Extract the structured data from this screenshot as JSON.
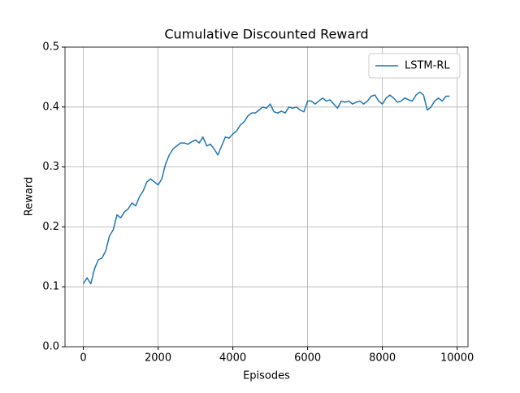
{
  "chart_data": {
    "type": "line",
    "title": "Cumulative Discounted Reward",
    "xlabel": "Episodes",
    "ylabel": "Reward",
    "x": [
      0,
      100,
      200,
      300,
      400,
      500,
      600,
      700,
      800,
      900,
      1000,
      1100,
      1200,
      1300,
      1400,
      1500,
      1600,
      1700,
      1800,
      1900,
      2000,
      2100,
      2200,
      2300,
      2400,
      2500,
      2600,
      2700,
      2800,
      2900,
      3000,
      3100,
      3200,
      3300,
      3400,
      3500,
      3600,
      3700,
      3800,
      3900,
      4000,
      4100,
      4200,
      4300,
      4400,
      4500,
      4600,
      4700,
      4800,
      4900,
      5000,
      5100,
      5200,
      5300,
      5400,
      5500,
      5600,
      5700,
      5800,
      5900,
      6000,
      6100,
      6200,
      6300,
      6400,
      6500,
      6600,
      6700,
      6800,
      6900,
      7000,
      7100,
      7200,
      7300,
      7400,
      7500,
      7600,
      7700,
      7800,
      7900,
      8000,
      8100,
      8200,
      8300,
      8400,
      8500,
      8600,
      8700,
      8800,
      8900,
      9000,
      9100,
      9200,
      9300,
      9400,
      9500,
      9600,
      9700,
      9800
    ],
    "series": [
      {
        "name": "LSTM-RL",
        "color": "#1f77b4",
        "values": [
          0.105,
          0.115,
          0.105,
          0.13,
          0.145,
          0.148,
          0.16,
          0.185,
          0.195,
          0.22,
          0.215,
          0.225,
          0.23,
          0.24,
          0.235,
          0.25,
          0.26,
          0.275,
          0.28,
          0.275,
          0.27,
          0.28,
          0.305,
          0.32,
          0.33,
          0.335,
          0.34,
          0.34,
          0.338,
          0.342,
          0.345,
          0.34,
          0.35,
          0.335,
          0.338,
          0.33,
          0.32,
          0.335,
          0.35,
          0.348,
          0.355,
          0.36,
          0.37,
          0.375,
          0.385,
          0.39,
          0.39,
          0.395,
          0.4,
          0.398,
          0.405,
          0.392,
          0.39,
          0.393,
          0.39,
          0.4,
          0.398,
          0.4,
          0.395,
          0.392,
          0.41,
          0.41,
          0.405,
          0.41,
          0.415,
          0.41,
          0.412,
          0.405,
          0.398,
          0.41,
          0.408,
          0.41,
          0.405,
          0.408,
          0.41,
          0.405,
          0.41,
          0.418,
          0.42,
          0.41,
          0.405,
          0.415,
          0.42,
          0.415,
          0.408,
          0.41,
          0.415,
          0.412,
          0.41,
          0.42,
          0.425,
          0.42,
          0.395,
          0.4,
          0.41,
          0.415,
          0.41,
          0.418,
          0.418
        ]
      }
    ],
    "xlim": [
      -490,
      10290
    ],
    "xticks": [
      0,
      2000,
      4000,
      6000,
      8000,
      10000
    ],
    "ylim": [
      0,
      0.5
    ],
    "yticks": [
      {
        "value": 0,
        "label": "0.0"
      },
      0.1,
      0.2,
      0.3,
      0.4,
      0.5
    ],
    "grid": true,
    "legend": "upper-right"
  }
}
